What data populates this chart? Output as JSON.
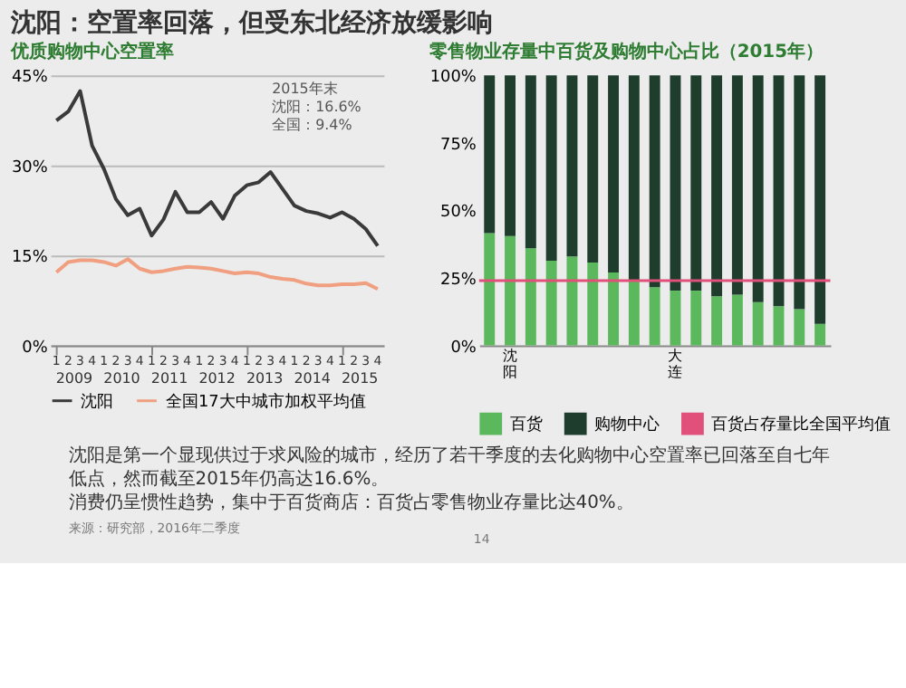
{
  "chart_data": [
    {
      "type": "line",
      "title": "沈阳：空置率回落，但受东北经济放缓影响",
      "subtitle": "优质购物中心空置率",
      "categories": [
        "1",
        "2",
        "3",
        "4",
        "1",
        "2",
        "3",
        "4",
        "1",
        "2",
        "3",
        "4",
        "1",
        "2",
        "3",
        "4",
        "1",
        "2",
        "3",
        "4",
        "1",
        "2",
        "3",
        "4",
        "1",
        "2",
        "3",
        "4"
      ],
      "series": [
        {
          "name": "沈阳",
          "color": "#3a3a3a",
          "values": [
            37.5,
            39,
            42.4,
            33.3,
            29.4,
            24.4,
            21.7,
            22.8,
            18.3,
            21,
            25.6,
            22.2,
            22.2,
            23.9,
            21.1,
            25,
            26.7,
            27.2,
            28.9,
            26.1,
            23.3,
            22.4,
            22,
            21.3,
            22.2,
            21.1,
            19.4,
            16.6
          ]
        },
        {
          "name": "全国17大中城市加权平均值",
          "color": "#f0a080",
          "values": [
            12.2,
            13.9,
            14.2,
            14.2,
            13.9,
            13.3,
            14.4,
            12.8,
            12.2,
            12.4,
            12.8,
            13.1,
            13,
            12.8,
            12.4,
            12,
            12.2,
            12,
            11.4,
            11.1,
            10.9,
            10.3,
            10,
            10,
            10.2,
            10.2,
            10.4,
            9.4
          ]
        }
      ],
      "ylim": [
        0,
        45
      ],
      "yticks": [
        {
          "value": 0,
          "label": "0%"
        },
        {
          "value": 15,
          "label": "15%"
        },
        {
          "value": 30,
          "label": "30%"
        },
        {
          "value": 45,
          "label": "45%"
        }
      ],
      "grid": "y",
      "legend": "bottom",
      "marker": "none",
      "line_style": "solid",
      "annotations": [
        "2015年末",
        "沈阳：16.6%",
        "全国：9.4%",
        "2009",
        "2010",
        "2011",
        "2012",
        "2013",
        "2014",
        "2015"
      ]
    },
    {
      "type": "bar",
      "title": "零售物业存量中百货及购物中心占比（2015年）",
      "stacked": true,
      "categories": [
        null,
        "沈阳",
        null,
        null,
        null,
        null,
        null,
        null,
        null,
        "大连",
        null,
        null,
        null,
        null,
        null,
        null,
        null
      ],
      "series": [
        {
          "name": "百货",
          "color": "#5cb85c",
          "values": [
            41.6,
            40.5,
            36,
            31.4,
            33,
            30.7,
            27,
            24,
            21.6,
            20.3,
            20.3,
            18.2,
            18.8,
            16,
            14.5,
            13.4,
            8
          ]
        },
        {
          "name": "购物中心",
          "color": "#1e3d2c",
          "values": [
            58.4,
            59.5,
            64,
            68.6,
            67,
            69.3,
            73,
            76,
            78.4,
            79.7,
            79.7,
            81.8,
            81.2,
            84,
            85.5,
            86.6,
            92
          ]
        }
      ],
      "ylim": [
        0,
        100
      ],
      "yticks": [
        {
          "value": 0,
          "label": "0%"
        },
        {
          "value": 25,
          "label": "25%"
        },
        {
          "value": 50,
          "label": "50%"
        },
        {
          "value": 75,
          "label": "75%"
        },
        {
          "value": 100,
          "label": "100%"
        }
      ],
      "ref_lines": [
        {
          "axis": "y",
          "value": 24,
          "label": "百货占存量比全国平均值",
          "color": "#e0507a"
        }
      ],
      "grid": false,
      "legend": "bottom",
      "annotations": [
        "沈阳是第一个显现供过于求风险的城市，经历了若干季度的去化购物中心空置率已回落至自七年低点，然而截至2015年仍高达16.6%。",
        "消费仍呈惯性趋势，集中于百货商店：百货占零售物业存量比达40%。",
        "来源：研究部，2016年二季度",
        "14"
      ]
    }
  ]
}
